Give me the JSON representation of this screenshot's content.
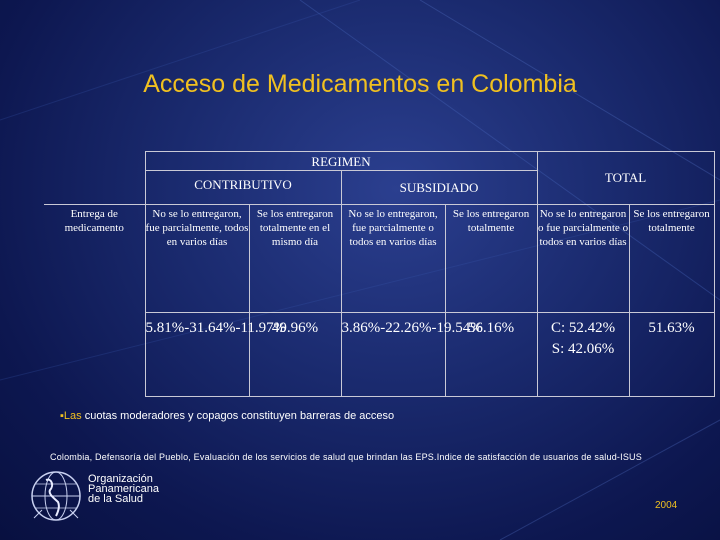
{
  "title": "Acceso de Medicamentos en Colombia",
  "table": {
    "regimen_header": "REGIMEN",
    "contributivo_header": "CONTRIBUTIVO",
    "subsidiado_header": "SUBSIDIADO",
    "total_header": "TOTAL",
    "row_label": "Entrega de medicamento",
    "sub_headers": [
      "No se lo entregaron, fue parcialmente, todos en varios días",
      "Se los entregaron totalmente en el mismo día",
      "No se lo entregaron, fue parcialmente o todos en varios días",
      "Se los entregaron totalmente",
      "No se lo entregaron o fue parcialmente o todos en varios días",
      "Se los entregaron totalmente"
    ],
    "values": [
      "5.81%-31.64%-11.97%",
      "49.96%",
      "3.86%-22.26%-19.54%",
      "56.16%",
      "C: 52.42% S: 42.06%",
      "51.63%"
    ]
  },
  "note": {
    "bullet": "▪",
    "lead": "Las",
    "text": "cuotas moderadores y copagos constituyen barreras de acceso"
  },
  "source": "Colombia, Defensoría del Pueblo, Evaluación de los servicios de salud que brindan las EPS.Indice de satisfacción de usuarios de salud-ISUS",
  "org": {
    "line1": "Organización",
    "line2": "Panamericana",
    "line3": "de la Salud"
  },
  "year": "2004",
  "colors": {
    "accent": "#f0c020",
    "background": "#1a2a6e",
    "border": "#c9c9d6"
  }
}
